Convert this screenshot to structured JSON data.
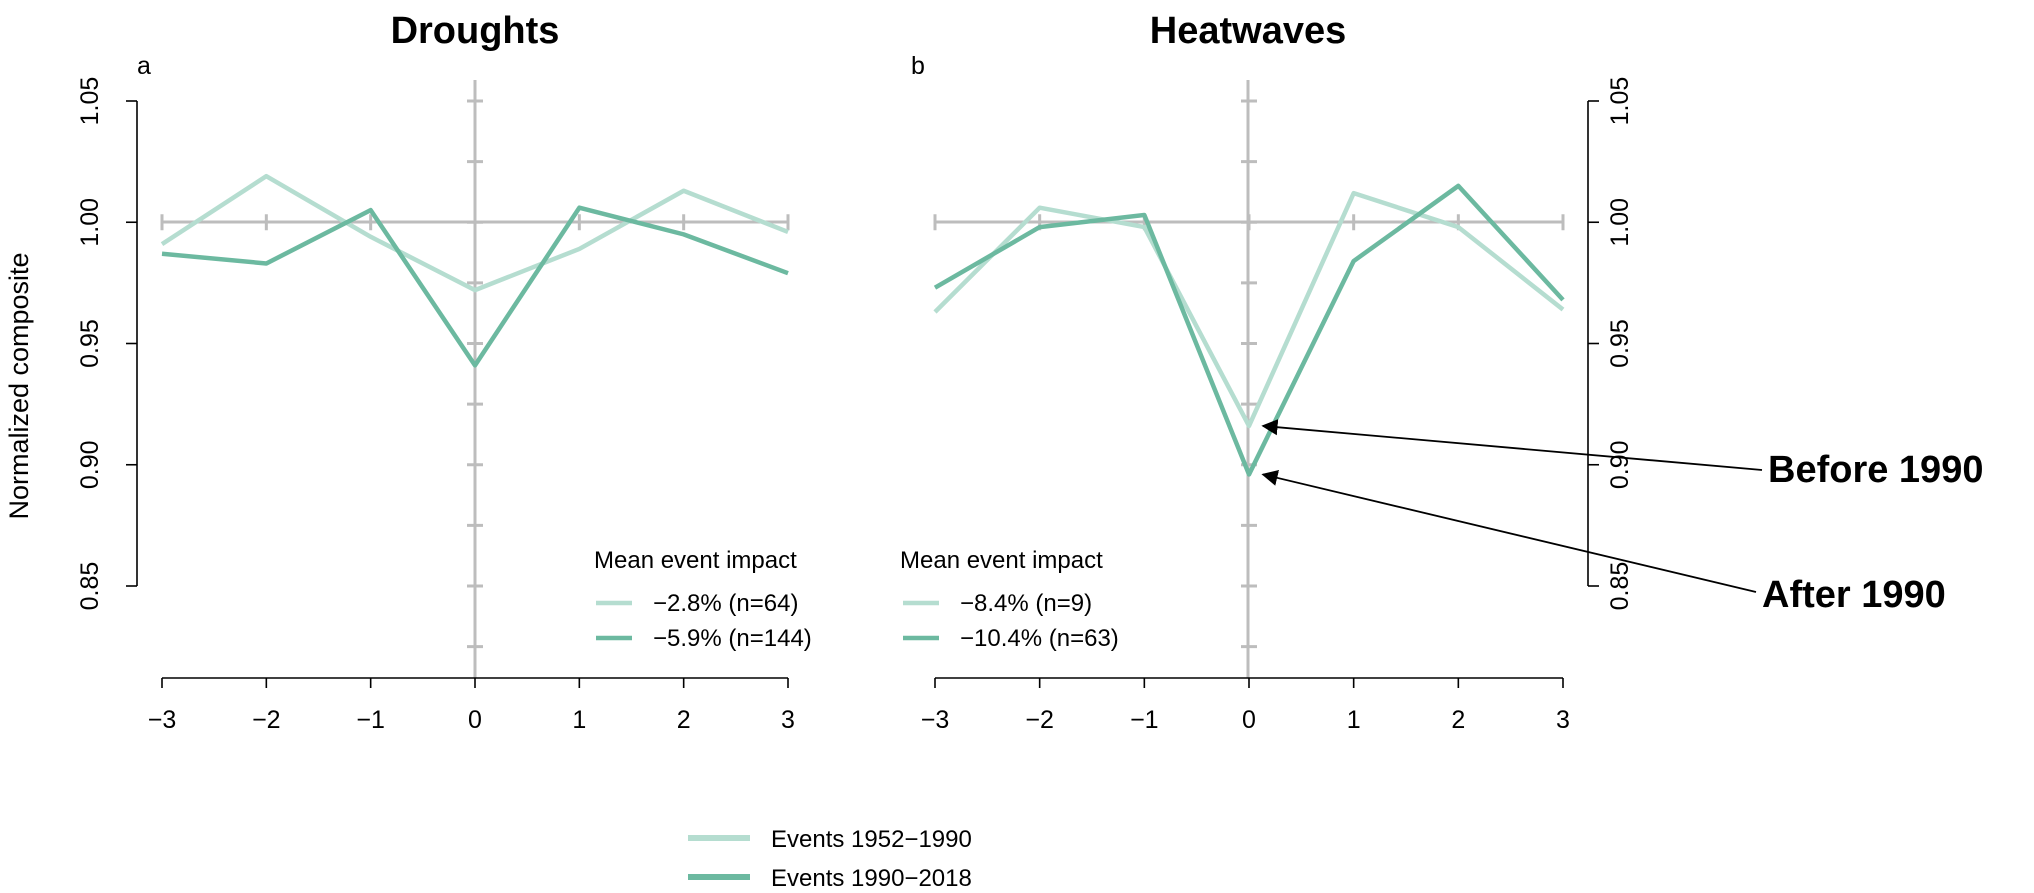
{
  "chart_data": [
    {
      "type": "line",
      "panel_label": "a",
      "title": "Droughts",
      "ylabel": "Normalized composite",
      "x": [
        -3,
        -2,
        -1,
        0,
        1,
        2,
        3
      ],
      "x_tick_labels": [
        "−3",
        "−2",
        "−1",
        "0",
        "1",
        "2",
        "3"
      ],
      "y_ticks": [
        0.85,
        0.9,
        0.95,
        1.0,
        1.05
      ],
      "y_tick_labels": [
        "0.85",
        "0.90",
        "0.95",
        "1.00",
        "1.05"
      ],
      "ylim": [
        0.85,
        1.05
      ],
      "y_axis_side": "left",
      "legend_title": "Mean event impact",
      "series": [
        {
          "name": "−2.8% (n=64)",
          "color": "#b5ddd0",
          "values": [
            0.991,
            1.019,
            0.994,
            0.972,
            0.989,
            1.013,
            0.996
          ]
        },
        {
          "name": "−5.9% (n=144)",
          "color": "#6cb9a0",
          "values": [
            0.987,
            0.983,
            1.005,
            0.941,
            1.006,
            0.995,
            0.979
          ]
        }
      ]
    },
    {
      "type": "line",
      "panel_label": "b",
      "title": "Heatwaves",
      "x": [
        -3,
        -2,
        -1,
        0,
        1,
        2,
        3
      ],
      "x_tick_labels": [
        "−3",
        "−2",
        "−1",
        "0",
        "1",
        "2",
        "3"
      ],
      "y_ticks": [
        0.85,
        0.9,
        0.95,
        1.0,
        1.05
      ],
      "y_tick_labels": [
        "0.85",
        "0.90",
        "0.95",
        "1.00",
        "1.05"
      ],
      "ylim": [
        0.85,
        1.05
      ],
      "y_axis_side": "right",
      "legend_title": "Mean event impact",
      "series": [
        {
          "name": "−8.4% (n=9)",
          "color": "#b5ddd0",
          "values": [
            0.963,
            1.006,
            0.998,
            0.916,
            1.012,
            0.998,
            0.964
          ]
        },
        {
          "name": "−10.4% (n=63)",
          "color": "#6cb9a0",
          "values": [
            0.973,
            0.998,
            1.003,
            0.896,
            0.984,
            1.015,
            0.968
          ]
        }
      ]
    }
  ],
  "legend": [
    {
      "label": "Events 1952−1990",
      "color": "#b5ddd0"
    },
    {
      "label": "Events 1990−2018",
      "color": "#6cb9a0"
    }
  ],
  "annotations": [
    {
      "text": "Before 1990",
      "points_to": {
        "panel": 1,
        "series": 0,
        "x": 0
      }
    },
    {
      "text": "After 1990",
      "points_to": {
        "panel": 1,
        "series": 1,
        "x": 0
      }
    }
  ]
}
